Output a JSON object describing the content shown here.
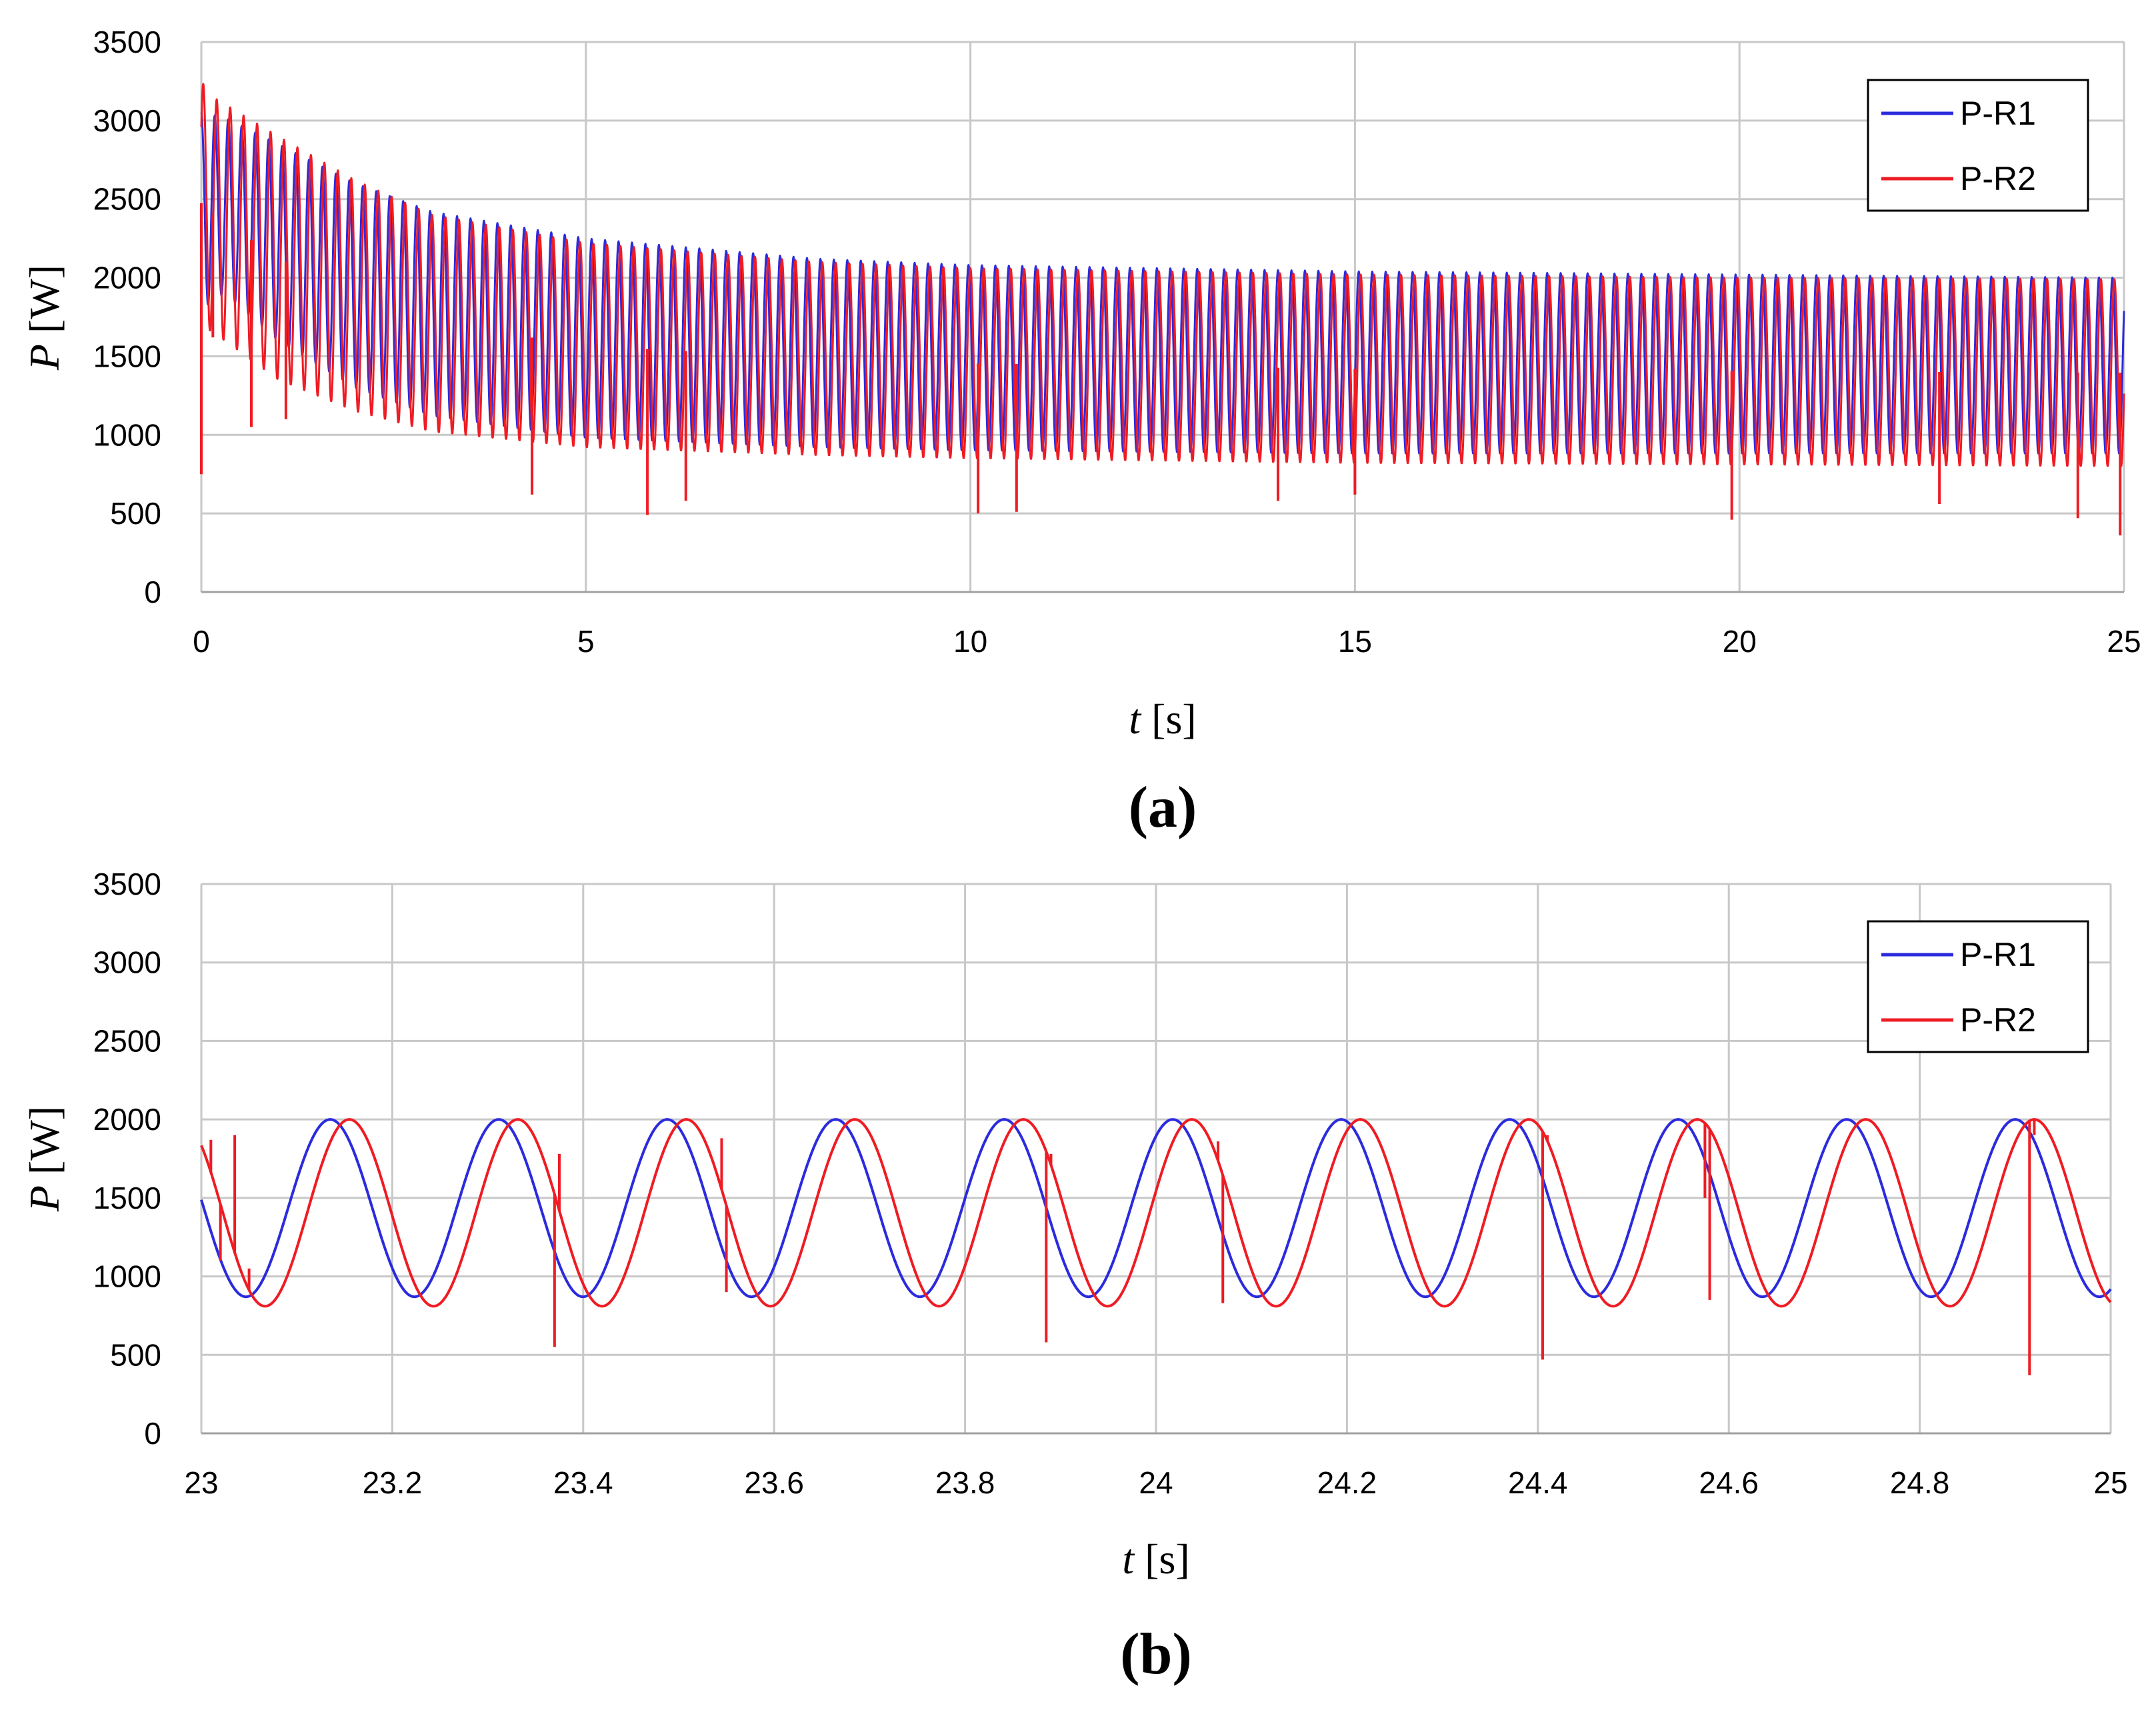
{
  "chart_data": [
    {
      "type": "line",
      "panel_label": "(a)",
      "xlabel_var": "t",
      "xlabel_unit": "[s]",
      "ylabel_var": "P",
      "ylabel_unit": "[W]",
      "xlim": [
        0,
        25
      ],
      "ylim": [
        0,
        3500
      ],
      "xticks": [
        0,
        5,
        10,
        15,
        20,
        25
      ],
      "xtick_labels": [
        "0",
        "5",
        "10",
        "15",
        "20",
        "25"
      ],
      "yticks": [
        0,
        500,
        1000,
        1500,
        2000,
        2500,
        3000,
        3500
      ],
      "ytick_labels": [
        "0",
        "500",
        "1000",
        "1500",
        "2000",
        "2500",
        "3000",
        "3500"
      ],
      "grid": true,
      "legend_position": "top-right",
      "oscillation_period_s": 0.175,
      "series": [
        {
          "name": "P-R1",
          "color": "#2b2bdd",
          "phase_lag_s": 0.0,
          "envelope_max": {
            "t": [
              0,
              0.3,
              1,
              2,
              3,
              5,
              8,
              10,
              15,
              20,
              25
            ],
            "p": [
              3050,
              3020,
              2850,
              2600,
              2420,
              2250,
              2120,
              2080,
              2040,
              2020,
              2000
            ]
          },
          "envelope_min": {
            "t": [
              0,
              0.3,
              1,
              2,
              3,
              5,
              8,
              10,
              15,
              20,
              25
            ],
            "p": [
              1800,
              1900,
              1600,
              1300,
              1120,
              980,
              920,
              900,
              880,
              880,
              880
            ]
          },
          "spikes": []
        },
        {
          "name": "P-R2",
          "color": "#ee1c24",
          "phase_lag_s": 0.025,
          "envelope_max": {
            "t": [
              0,
              0.15,
              1,
              2,
              3,
              5,
              8,
              10,
              15,
              20,
              25
            ],
            "p": [
              3250,
              3150,
              2900,
              2620,
              2400,
              2220,
              2100,
              2060,
              2020,
              2000,
              1990
            ]
          },
          "envelope_min": {
            "t": [
              0,
              0.3,
              1,
              2,
              3,
              5,
              8,
              10,
              15,
              20,
              25
            ],
            "p": [
              1700,
              1600,
              1350,
              1150,
              1020,
              920,
              870,
              850,
              820,
              810,
              800
            ]
          },
          "spikes": [
            {
              "t": 0.0,
              "p": 750
            },
            {
              "t": 0.15,
              "p": 1620
            },
            {
              "t": 0.65,
              "p": 1050
            },
            {
              "t": 1.1,
              "p": 1100
            },
            {
              "t": 4.3,
              "p": 620
            },
            {
              "t": 5.8,
              "p": 490
            },
            {
              "t": 6.3,
              "p": 580
            },
            {
              "t": 10.1,
              "p": 500
            },
            {
              "t": 10.6,
              "p": 510
            },
            {
              "t": 14.0,
              "p": 580
            },
            {
              "t": 15.0,
              "p": 620
            },
            {
              "t": 19.9,
              "p": 460
            },
            {
              "t": 22.6,
              "p": 560
            },
            {
              "t": 24.4,
              "p": 470
            },
            {
              "t": 24.95,
              "p": 360
            }
          ]
        }
      ]
    },
    {
      "type": "line",
      "panel_label": "(b)",
      "xlabel_var": "t",
      "xlabel_unit": "[s]",
      "ylabel_var": "P",
      "ylabel_unit": "[W]",
      "xlim": [
        23,
        25
      ],
      "ylim": [
        0,
        3500
      ],
      "xticks": [
        23,
        23.2,
        23.4,
        23.6,
        23.8,
        24,
        24.2,
        24.4,
        24.6,
        24.8,
        25
      ],
      "xtick_labels": [
        "23",
        "23.2",
        "23.4",
        "23.6",
        "23.8",
        "24",
        "24.2",
        "24.4",
        "24.6",
        "24.8",
        "25"
      ],
      "yticks": [
        0,
        500,
        1000,
        1500,
        2000,
        2500,
        3000,
        3500
      ],
      "ytick_labels": [
        "0",
        "500",
        "1000",
        "1500",
        "2000",
        "2500",
        "3000",
        "3500"
      ],
      "grid": true,
      "legend_position": "top-right",
      "series": [
        {
          "name": "P-R1",
          "color": "#2b2bdd",
          "period_s": 0.1765,
          "first_peak_s": 23.135,
          "max": 2000,
          "min": 870,
          "spikes": []
        },
        {
          "name": "P-R2",
          "color": "#ee1c24",
          "period_s": 0.1765,
          "first_peak_s": 23.155,
          "max": 2000,
          "min": 810,
          "spikes": [
            {
              "t": 23.01,
              "p": 1870
            },
            {
              "t": 23.02,
              "p": 1100
            },
            {
              "t": 23.035,
              "p": 1900
            },
            {
              "t": 23.05,
              "p": 1050
            },
            {
              "t": 23.37,
              "p": 550
            },
            {
              "t": 23.375,
              "p": 1780
            },
            {
              "t": 23.545,
              "p": 1880
            },
            {
              "t": 23.55,
              "p": 900
            },
            {
              "t": 23.885,
              "p": 580
            },
            {
              "t": 23.89,
              "p": 1780
            },
            {
              "t": 24.065,
              "p": 1860
            },
            {
              "t": 24.07,
              "p": 830
            },
            {
              "t": 24.405,
              "p": 470
            },
            {
              "t": 24.41,
              "p": 1900
            },
            {
              "t": 24.575,
              "p": 1500
            },
            {
              "t": 24.58,
              "p": 850
            },
            {
              "t": 24.915,
              "p": 370
            },
            {
              "t": 24.92,
              "p": 1900
            }
          ]
        }
      ]
    }
  ]
}
